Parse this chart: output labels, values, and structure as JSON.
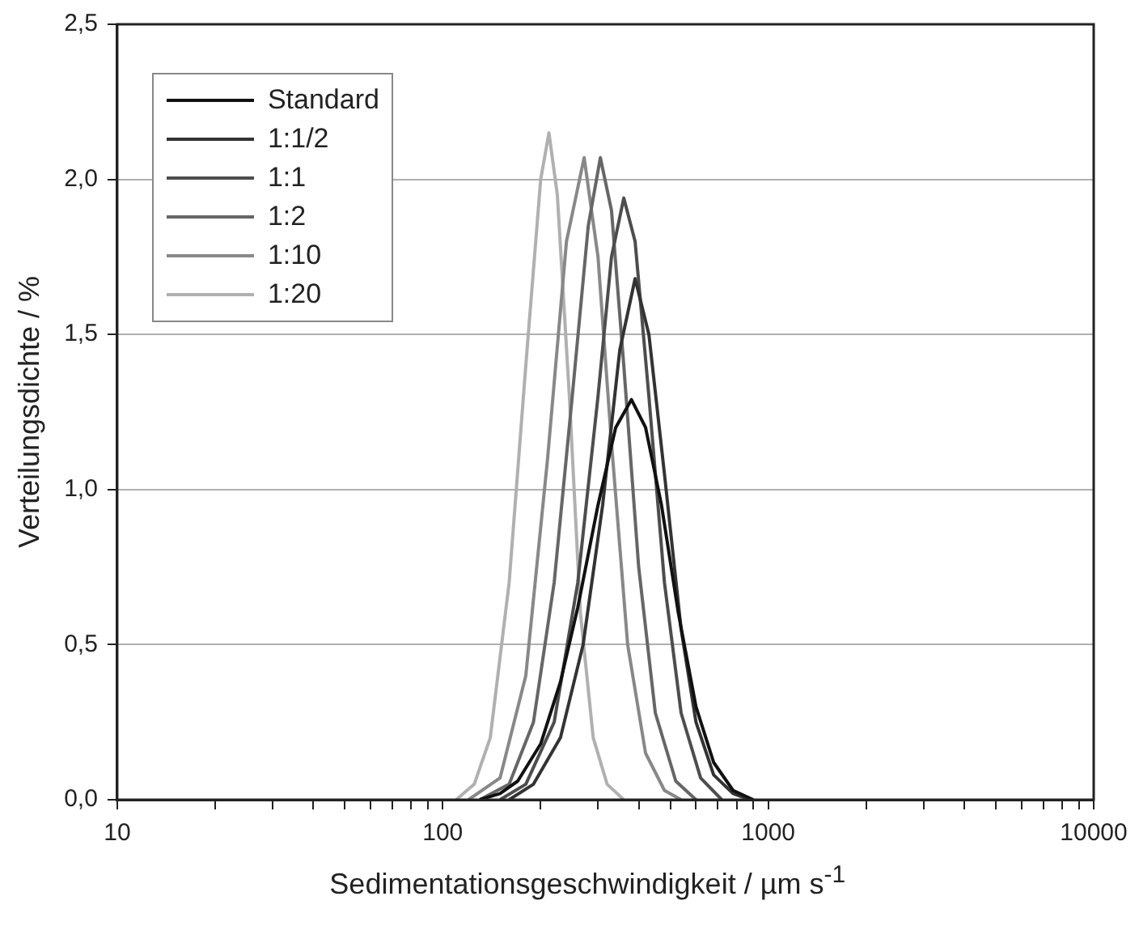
{
  "chart_data": {
    "type": "line",
    "xlabel": "Sedimentationsgeschwindigkeit / µm s$^{-1}$",
    "ylabel": "Verteilungsdichte / %",
    "log": "x",
    "grid": "y",
    "legend": "top left",
    "marker": "none",
    "line_style": "solid",
    "xlim": [
      10,
      10000
    ],
    "xticks": [
      10,
      {
        "value": 20,
        "label": null
      },
      {
        "value": 30,
        "label": null
      },
      {
        "value": 40,
        "label": null
      },
      {
        "value": 50,
        "label": null
      },
      {
        "value": 60,
        "label": null
      },
      {
        "value": 70,
        "label": null
      },
      {
        "value": 80,
        "label": null
      },
      {
        "value": 90,
        "label": null
      },
      100,
      {
        "value": 200,
        "label": null
      },
      {
        "value": 300,
        "label": null
      },
      {
        "value": 400,
        "label": null
      },
      {
        "value": 500,
        "label": null
      },
      {
        "value": 600,
        "label": null
      },
      {
        "value": 700,
        "label": null
      },
      {
        "value": 800,
        "label": null
      },
      {
        "value": 900,
        "label": null
      },
      1000,
      {
        "value": 2000,
        "label": null
      },
      {
        "value": 3000,
        "label": null
      },
      {
        "value": 4000,
        "label": null
      },
      {
        "value": 5000,
        "label": null
      },
      {
        "value": 6000,
        "label": null
      },
      {
        "value": 7000,
        "label": null
      },
      {
        "value": 8000,
        "label": null
      },
      {
        "value": 9000,
        "label": null
      },
      10000
    ],
    "ylim": [
      0,
      2.5
    ],
    "yticks": [
      {
        "value": 0,
        "label": "0,0"
      },
      {
        "value": 0.5,
        "label": "0,5"
      },
      {
        "value": 1,
        "label": "1,0"
      },
      {
        "value": 1.5,
        "label": "1,5"
      },
      {
        "value": 2,
        "label": "2,0"
      },
      {
        "value": 2.5,
        "label": "2,5"
      }
    ],
    "series": [
      {
        "name": "Standard",
        "color": "#111111",
        "x": [
          130,
          150,
          170,
          200,
          230,
          260,
          300,
          340,
          380,
          420,
          470,
          530,
          600,
          680,
          780,
          900
        ],
        "values": [
          0,
          0.02,
          0.06,
          0.18,
          0.38,
          0.62,
          0.95,
          1.2,
          1.29,
          1.2,
          0.95,
          0.6,
          0.3,
          0.12,
          0.03,
          0
        ]
      },
      {
        "name": "1:1/2",
        "color": "#333333",
        "x": [
          160,
          190,
          230,
          270,
          310,
          350,
          390,
          430,
          480,
          540,
          600,
          680,
          780,
          880
        ],
        "values": [
          0,
          0.05,
          0.2,
          0.5,
          0.95,
          1.45,
          1.68,
          1.5,
          1.05,
          0.55,
          0.25,
          0.08,
          0.02,
          0
        ]
      },
      {
        "name": "1:1",
        "color": "#4d4d4d",
        "x": [
          150,
          180,
          220,
          260,
          300,
          330,
          360,
          390,
          430,
          480,
          540,
          620,
          720
        ],
        "values": [
          0,
          0.05,
          0.25,
          0.7,
          1.3,
          1.75,
          1.94,
          1.8,
          1.3,
          0.7,
          0.28,
          0.07,
          0
        ]
      },
      {
        "name": "1:2",
        "color": "#666666",
        "x": [
          130,
          160,
          190,
          220,
          250,
          280,
          305,
          330,
          360,
          400,
          450,
          520,
          600
        ],
        "values": [
          0,
          0.05,
          0.25,
          0.7,
          1.3,
          1.85,
          2.07,
          1.9,
          1.4,
          0.75,
          0.28,
          0.06,
          0
        ]
      },
      {
        "name": "1:10",
        "color": "#888888",
        "x": [
          120,
          150,
          180,
          210,
          240,
          272,
          300,
          330,
          370,
          420,
          480,
          540
        ],
        "values": [
          0,
          0.07,
          0.4,
          1.1,
          1.8,
          2.07,
          1.75,
          1.15,
          0.5,
          0.15,
          0.03,
          0
        ]
      },
      {
        "name": "1:20",
        "color": "#b0b0b0",
        "x": [
          110,
          125,
          140,
          160,
          180,
          200,
          212,
          225,
          245,
          265,
          290,
          320,
          360
        ],
        "values": [
          0,
          0.05,
          0.2,
          0.7,
          1.4,
          2.0,
          2.15,
          1.95,
          1.3,
          0.6,
          0.2,
          0.05,
          0
        ]
      }
    ]
  }
}
